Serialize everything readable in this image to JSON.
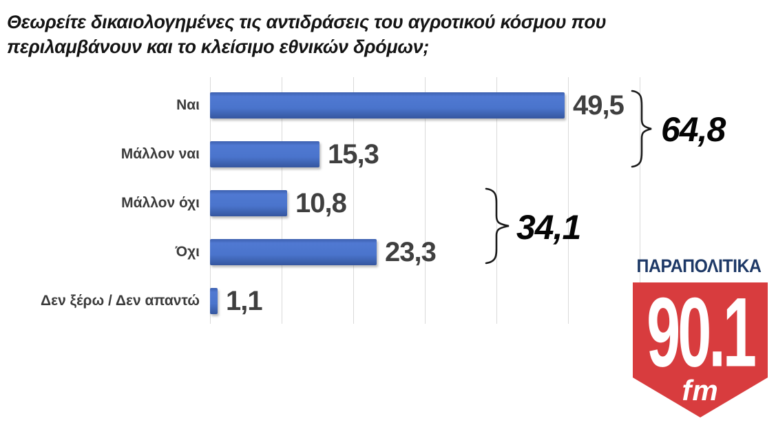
{
  "title": "Θεωρείτε δικαιολογημένες τις αντιδράσεις του αγροτικού κόσμου που\nπεριλαμβάνουν και το κλείσιμο εθνικών δρόμων;",
  "chart_data": {
    "type": "bar",
    "orientation": "horizontal",
    "title": "Θεωρείτε δικαιολογημένες τις αντιδράσεις του αγροτικού κόσμου που περιλαμβάνουν και το κλείσιμο εθνικών δρόμων;",
    "categories": [
      "Ναι",
      "Μάλλον ναι",
      "Μάλλον όχι",
      "Όχι",
      "Δεν ξέρω / Δεν απαντώ"
    ],
    "values": [
      49.5,
      15.3,
      10.8,
      23.3,
      1.1
    ],
    "value_labels": [
      "49,5",
      "15,3",
      "10,8",
      "23,3",
      "1,1"
    ],
    "xlim": [
      0,
      60
    ],
    "gridline_step": 10,
    "grid": "vertical-light-gray",
    "legend": "none",
    "bar_color": "#4472c4",
    "groups": [
      {
        "label": "64,8",
        "value": 64.8,
        "covers": [
          "Ναι",
          "Μάλλον ναι"
        ]
      },
      {
        "label": "34,1",
        "value": 34.1,
        "covers": [
          "Μάλλον όχι",
          "Όχι"
        ]
      }
    ]
  },
  "logo": {
    "brand": "ΠΑΡΑΠΟΛΙΤΙΚΑ",
    "frequency": "90.1",
    "band": "fm",
    "navy": "#1d3866",
    "red": "#d83c3e",
    "text_color": "#ffffff"
  },
  "colors": {
    "background": "#ffffff",
    "bar": "#4472c4",
    "gridline": "#d9d9d9",
    "category_label": "#3b3b3b",
    "value_label": "#3f3f3f",
    "group_label": "#050505",
    "brace": "#1a1a1a",
    "title": "#141414"
  }
}
